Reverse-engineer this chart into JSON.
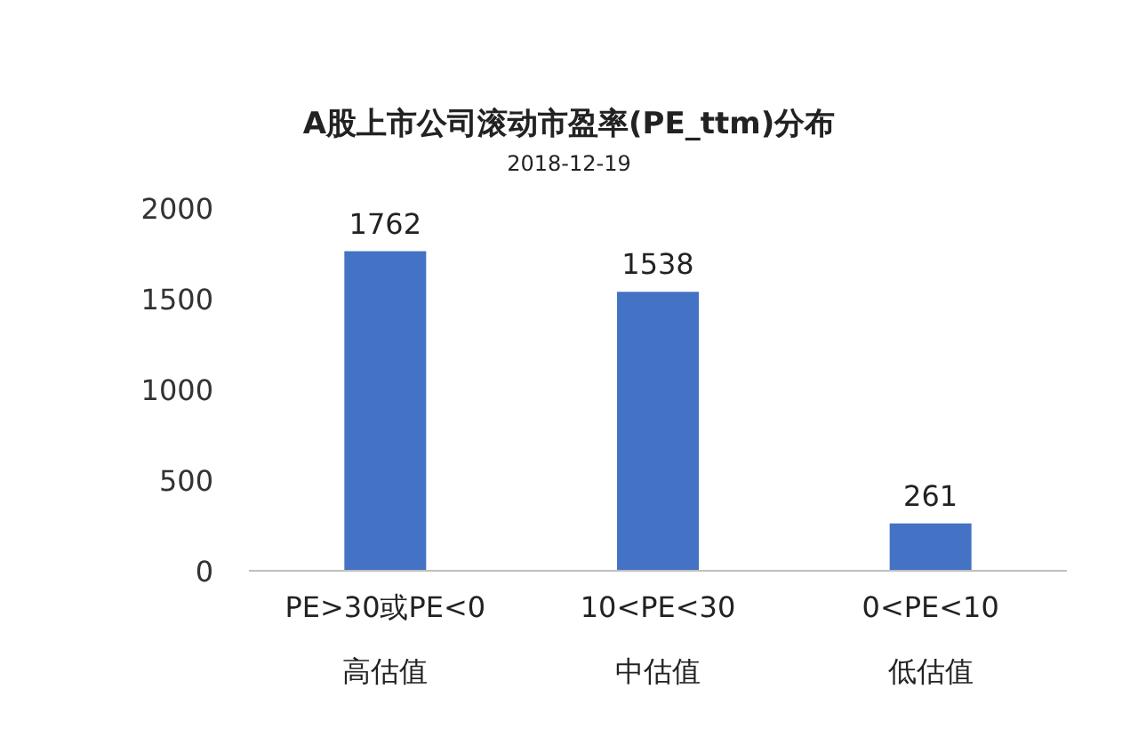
{
  "chart_data": {
    "type": "bar",
    "title": "A股上市公司滚动市盈率(PE_ttm)分布",
    "subtitle": "2018-12-19",
    "categories": [
      "PE>30或PE<0\n高估值",
      "10<PE<30\n中估值",
      "0<PE<10\n低估值"
    ],
    "values": [
      1762,
      1538,
      261
    ],
    "color": "#4472c4",
    "ylim": [
      0,
      2000
    ],
    "yticks": [
      0,
      500,
      1000,
      1500,
      2000
    ],
    "data_labels": true
  }
}
